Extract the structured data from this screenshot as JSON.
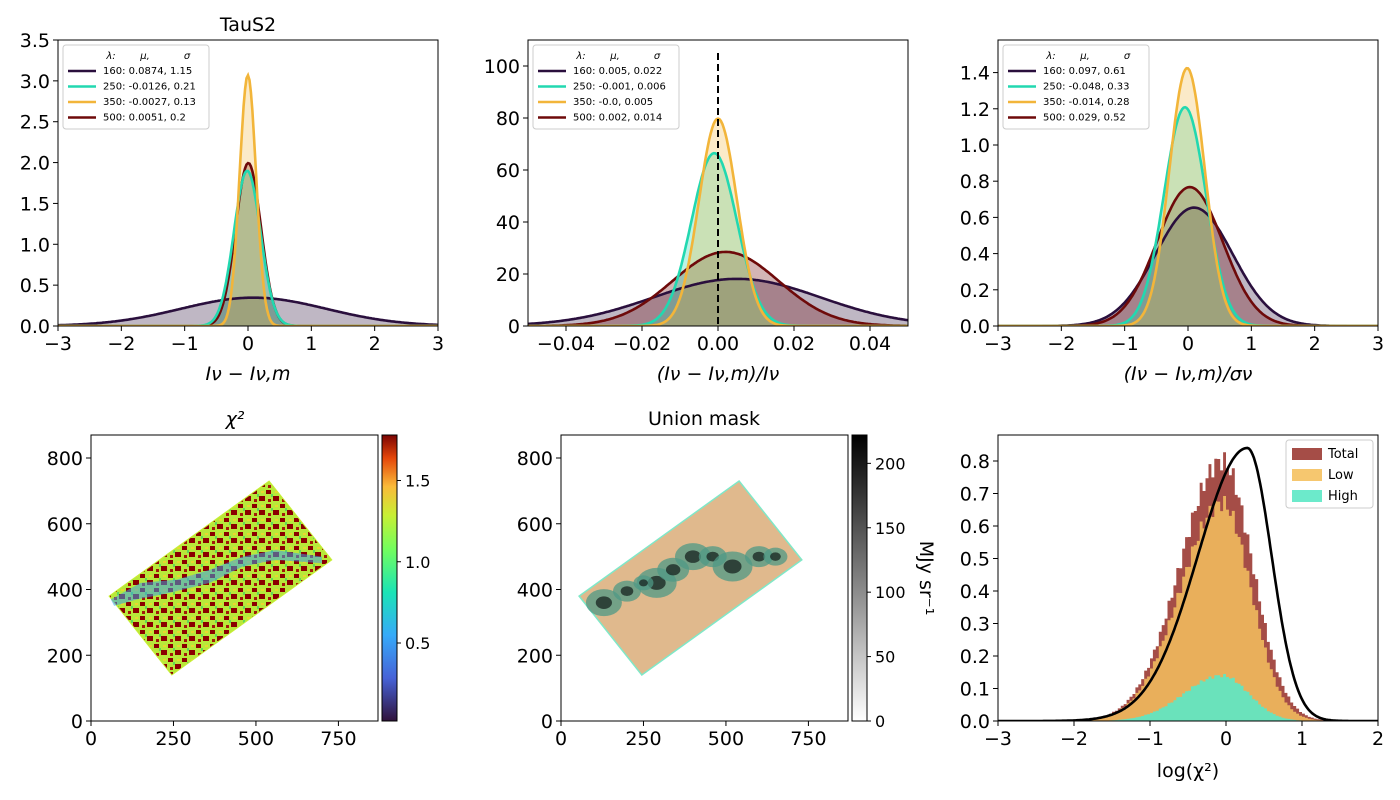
{
  "figure_title": "TauS2",
  "colors": {
    "c160": "#2a0f3d",
    "c250": "#22d8b0",
    "c350": "#f2b53a",
    "c500": "#6e0a0a"
  },
  "chart_data": [
    {
      "id": "p1",
      "type": "histogram",
      "title": "TauS2",
      "xlabel": "Iν − Iν,m",
      "xlim": [
        -3,
        3
      ],
      "ylim": [
        0,
        3.5
      ],
      "xticks": [
        -3,
        -2,
        -1,
        0,
        1,
        2,
        3
      ],
      "yticks": [
        0.0,
        0.5,
        1.0,
        1.5,
        2.0,
        2.5,
        3.0,
        3.5
      ],
      "xtick_labels": [
        "−3",
        "−2",
        "−1",
        "0",
        "1",
        "2",
        "3"
      ],
      "ytick_labels": [
        "0.0",
        "0.5",
        "1.0",
        "1.5",
        "2.0",
        "2.5",
        "3.0",
        "3.5"
      ],
      "legend_header": [
        "λ:",
        "μ,",
        "σ"
      ],
      "legend_loc": "upper-left",
      "series": [
        {
          "name": "160: 0.0874,  1.15",
          "band": "160",
          "mu": 0.0874,
          "sigma": 1.15
        },
        {
          "name": "250: -0.0126,  0.21",
          "band": "250",
          "mu": -0.0126,
          "sigma": 0.21
        },
        {
          "name": "350: -0.0027,  0.13",
          "band": "350",
          "mu": -0.0027,
          "sigma": 0.13
        },
        {
          "name": "500: 0.0051,  0.2",
          "band": "500",
          "mu": 0.0051,
          "sigma": 0.2
        }
      ]
    },
    {
      "id": "p2",
      "type": "histogram",
      "xlabel": "(Iν − Iν,m)/Iν",
      "xlim": [
        -0.05,
        0.05
      ],
      "ylim": [
        0,
        110
      ],
      "xticks": [
        -0.04,
        -0.02,
        0.0,
        0.02,
        0.04
      ],
      "yticks": [
        0,
        20,
        40,
        60,
        80,
        100
      ],
      "xtick_labels": [
        "−0.04",
        "−0.02",
        "0.00",
        "0.02",
        "0.04"
      ],
      "ytick_labels": [
        "0",
        "20",
        "40",
        "60",
        "80",
        "100"
      ],
      "legend_header": [
        "λ:",
        "μ,",
        "σ"
      ],
      "legend_loc": "upper-left",
      "vline": 0,
      "series": [
        {
          "name": "160: 0.005,  0.022",
          "band": "160",
          "mu": 0.005,
          "sigma": 0.022
        },
        {
          "name": "250: -0.001,  0.006",
          "band": "250",
          "mu": -0.001,
          "sigma": 0.006
        },
        {
          "name": "350: -0.0,  0.005",
          "band": "350",
          "mu": -0.0,
          "sigma": 0.005
        },
        {
          "name": "500: 0.002,  0.014",
          "band": "500",
          "mu": 0.002,
          "sigma": 0.014
        }
      ]
    },
    {
      "id": "p3",
      "type": "histogram",
      "xlabel": "(Iν − Iν,m)/σν",
      "xlim": [
        -3,
        3
      ],
      "ylim": [
        0,
        1.58
      ],
      "xticks": [
        -3,
        -2,
        -1,
        0,
        1,
        2,
        3
      ],
      "yticks": [
        0.0,
        0.2,
        0.4,
        0.6,
        0.8,
        1.0,
        1.2,
        1.4
      ],
      "xtick_labels": [
        "−3",
        "−2",
        "−1",
        "0",
        "1",
        "2",
        "3"
      ],
      "ytick_labels": [
        "0.0",
        "0.2",
        "0.4",
        "0.6",
        "0.8",
        "1.0",
        "1.2",
        "1.4"
      ],
      "legend_header": [
        "λ:",
        "μ,",
        "σ"
      ],
      "legend_loc": "upper-left",
      "series": [
        {
          "name": "160: 0.097,  0.61",
          "band": "160",
          "mu": 0.097,
          "sigma": 0.61
        },
        {
          "name": "250: -0.048,  0.33",
          "band": "250",
          "mu": -0.048,
          "sigma": 0.33
        },
        {
          "name": "350: -0.014,  0.28",
          "band": "350",
          "mu": -0.014,
          "sigma": 0.28
        },
        {
          "name": "500: 0.029,  0.52",
          "band": "500",
          "mu": 0.029,
          "sigma": 0.52
        }
      ]
    },
    {
      "id": "p4",
      "type": "heatmap",
      "title": "χ²",
      "xlim": [
        0,
        870
      ],
      "ylim": [
        0,
        870
      ],
      "xticks": [
        0,
        250,
        500,
        750
      ],
      "yticks": [
        0,
        200,
        400,
        600,
        800
      ],
      "xtick_labels": [
        "0",
        "250",
        "500",
        "750"
      ],
      "ytick_labels": [
        "0",
        "200",
        "400",
        "600",
        "800"
      ],
      "footprint": [
        [
          55,
          380
        ],
        [
          540,
          730
        ],
        [
          730,
          490
        ],
        [
          245,
          140
        ]
      ],
      "colorbar": {
        "range": [
          0.02,
          1.78
        ],
        "ticks": [
          0.5,
          1.0,
          1.5
        ],
        "tick_labels": [
          "0.5",
          "1.0",
          "1.5"
        ],
        "colormap": "turbo"
      }
    },
    {
      "id": "p5",
      "type": "heatmap",
      "title": "Union mask",
      "xlim": [
        0,
        870
      ],
      "ylim": [
        0,
        870
      ],
      "xticks": [
        0,
        250,
        500,
        750
      ],
      "yticks": [
        0,
        200,
        400,
        600,
        800
      ],
      "xtick_labels": [
        "0",
        "250",
        "500",
        "750"
      ],
      "ytick_labels": [
        "0",
        "200",
        "400",
        "600",
        "800"
      ],
      "footprint": [
        [
          55,
          380
        ],
        [
          540,
          730
        ],
        [
          730,
          490
        ],
        [
          245,
          140
        ]
      ],
      "colorbar": {
        "range": [
          0,
          222
        ],
        "ticks": [
          0,
          50,
          100,
          150,
          200
        ],
        "tick_labels": [
          "0",
          "50",
          "100",
          "150",
          "200"
        ],
        "colormap": "gray_r",
        "label": "MJy sr⁻¹"
      }
    },
    {
      "id": "p6",
      "type": "histogram",
      "xlabel": "log(χ²)",
      "xlim": [
        -3,
        2
      ],
      "ylim": [
        0,
        0.88
      ],
      "xticks": [
        -3,
        -2,
        -1,
        0,
        1,
        2
      ],
      "yticks": [
        0.0,
        0.1,
        0.2,
        0.3,
        0.4,
        0.5,
        0.6,
        0.7,
        0.8
      ],
      "xtick_labels": [
        "−3",
        "−2",
        "−1",
        "0",
        "1",
        "2"
      ],
      "ytick_labels": [
        "0.0",
        "0.1",
        "0.2",
        "0.3",
        "0.4",
        "0.5",
        "0.6",
        "0.7",
        "0.8"
      ],
      "legend_loc": "upper-right",
      "series": [
        {
          "name": "Total",
          "color": "#9b3a33",
          "peak": 0.8,
          "mu": -0.05,
          "sigma_left": 0.55,
          "sigma_right": 0.4
        },
        {
          "name": "Low",
          "color": "#f5c15f",
          "peak": 0.67,
          "mu": -0.05,
          "sigma_left": 0.55,
          "sigma_right": 0.38
        },
        {
          "name": "High",
          "color": "#5ce8c5",
          "peak": 0.14,
          "mu": -0.05,
          "sigma_left": 0.5,
          "sigma_right": 0.35
        }
      ],
      "reference_curve": {
        "mu": 0.28,
        "peak": 0.84,
        "sigma_left": 0.65,
        "sigma_right": 0.32
      }
    }
  ]
}
